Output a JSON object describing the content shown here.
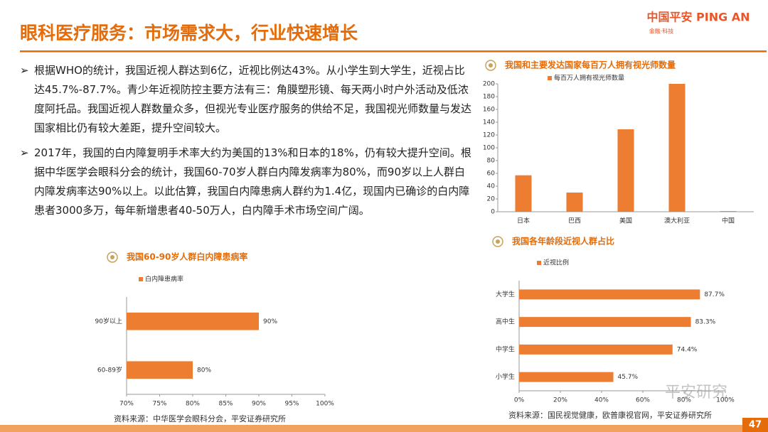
{
  "header": {
    "title": "眼科医疗服务：市场需求大，行业快速增长",
    "logo": "中国平安 PING AN",
    "logo_sub": "金融·科技"
  },
  "bullets": [
    "根据WHO的统计，我国近视人群达到6亿，近视比例达43%。从小学生到大学生，近视占比达45.7%-87.7%。青少年近视防控主要方法有三：角膜塑形镜、每天两小时户外活动及低浓度阿托品。我国近视人群数量众多，但视光专业医疗服务的供给不足，我国视光师数量与发达国家相比仍有较大差距，提升空间较大。",
    "2017年，我国的白内障复明手术率大约为美国的13%和日本的18%，仍有较大提升空间。根据中华医学会眼科分会的统计，我国60-70岁人群白内障发病率为80%，而90岁以上人群白内障发病率达90%以上。以此估算，我国白内障患病人群约为1.4亿，现国内已确诊的白内障患者3000多万，每年新增患者40-50万人，白内障手术市场空间广阔。"
  ],
  "chart_data": [
    {
      "type": "bar",
      "title": "我国和主要发达国家每百万人拥有视光师数量",
      "categories": [
        "日本",
        "巴西",
        "美国",
        "澳大利亚",
        "中国"
      ],
      "series": [
        {
          "name": "每百万人拥有视光师数量",
          "color": "#ed7d31",
          "values": [
            57,
            30,
            129,
            200,
            1
          ]
        }
      ],
      "ylim": [
        0,
        200
      ],
      "yticks": [
        0,
        20,
        40,
        60,
        80,
        100,
        120,
        140,
        160,
        180,
        200
      ],
      "grid": false
    },
    {
      "type": "hbar",
      "title": "我国60-90岁人群白内障患病率",
      "categories": [
        "90岁以上",
        "60-89岁"
      ],
      "series": [
        {
          "name": "白内障患病率",
          "color": "#ed7d31",
          "values": [
            90,
            80
          ],
          "value_labels": [
            "90%",
            "80%"
          ]
        }
      ],
      "xlim": [
        70,
        100
      ],
      "xticks": [
        {
          "value": 70,
          "label": "70%"
        },
        {
          "value": 75,
          "label": "75%"
        },
        {
          "value": 80,
          "label": "80%"
        },
        {
          "value": 85,
          "label": "85%"
        },
        {
          "value": 90,
          "label": "90%"
        },
        {
          "value": 95,
          "label": "95%"
        },
        {
          "value": 100,
          "label": "100%"
        }
      ],
      "grid": false
    },
    {
      "type": "hbar",
      "title": "我国各年龄段近视人群占比",
      "categories": [
        "大学生",
        "高中生",
        "中学生",
        "小学生"
      ],
      "series": [
        {
          "name": "近视比例",
          "color": "#ed7d31",
          "values": [
            87.7,
            83.3,
            74.4,
            45.7
          ],
          "value_labels": [
            "87.7%",
            "83.3%",
            "74.4%",
            "45.7%"
          ]
        }
      ],
      "xlim": [
        0,
        100
      ],
      "xticks": [
        {
          "value": 0,
          "label": "0%"
        },
        {
          "value": 20,
          "label": "20%"
        },
        {
          "value": 40,
          "label": "40%"
        },
        {
          "value": 60,
          "label": "60%"
        },
        {
          "value": 80,
          "label": "80%"
        },
        {
          "value": 100,
          "label": "100%"
        }
      ],
      "grid": false
    }
  ],
  "sources": [
    "资料来源：中华医学会眼科分会，平安证券研究所",
    "资料来源：国民视觉健康，欧普康视官网，平安证券研究所"
  ],
  "watermark": "平安研究",
  "page_number": "47"
}
